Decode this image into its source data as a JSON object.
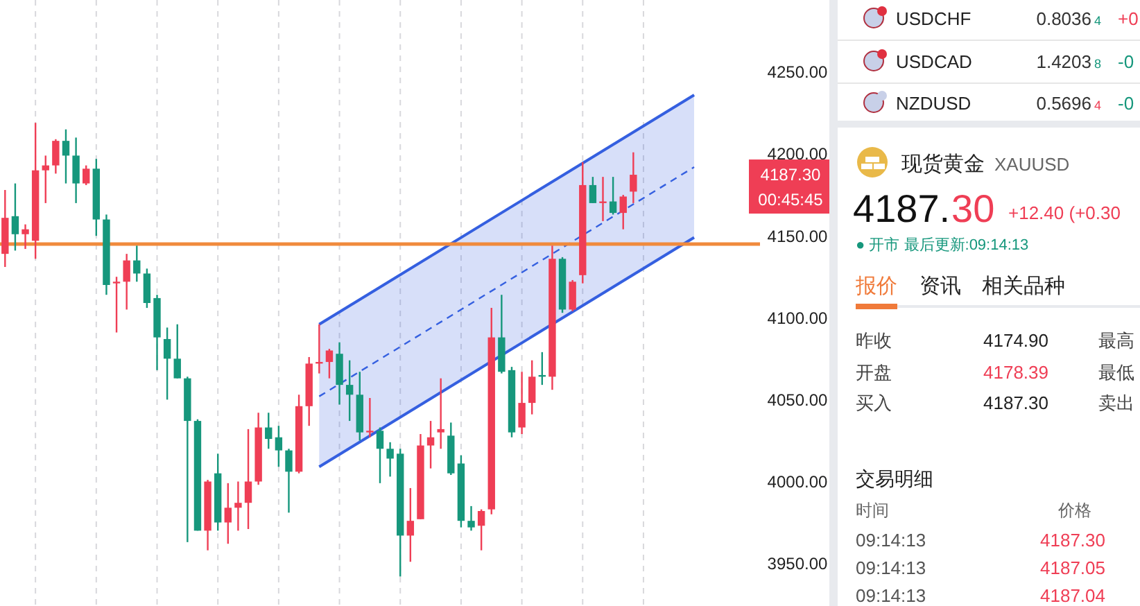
{
  "chart_data": [
    {
      "type": "candlestick",
      "categories": [
        null,
        null,
        null,
        null,
        null,
        null,
        null,
        null,
        null,
        null,
        null,
        null,
        null,
        null,
        null,
        null,
        null,
        null,
        null,
        null,
        null,
        null,
        null,
        null,
        null,
        null,
        null,
        null,
        null,
        null,
        null,
        null,
        null,
        null,
        null,
        null,
        null,
        null,
        null,
        null,
        null,
        null,
        null,
        null,
        null,
        null,
        null,
        null,
        null,
        null,
        null,
        null,
        null,
        null,
        null,
        null,
        null,
        null,
        null,
        null,
        null,
        null,
        null,
        null,
        null,
        null,
        null,
        null,
        null,
        null,
        null,
        null,
        null,
        null,
        null
      ],
      "ohlc": [
        [
          4139,
          4178,
          4131,
          4161
        ],
        [
          4162,
          4182,
          4141,
          4151
        ],
        [
          4151,
          4157,
          4142,
          4154
        ],
        [
          4147,
          4219,
          4136,
          4190
        ],
        [
          4190,
          4199,
          4170,
          4193
        ],
        [
          4193,
          4209,
          4188,
          4208
        ],
        [
          4208,
          4215,
          4182,
          4199
        ],
        [
          4199,
          4210,
          4170,
          4182
        ],
        [
          4182,
          4193,
          4181,
          4191
        ],
        [
          4191,
          4197,
          4150,
          4160
        ],
        [
          4160,
          4163,
          4114,
          4120
        ],
        [
          4121,
          4125,
          4091,
          4122
        ],
        [
          4122,
          4139,
          4105,
          4135
        ],
        [
          4135,
          4144,
          4122,
          4127
        ],
        [
          4127,
          4130,
          4106,
          4109
        ],
        [
          4112,
          4114,
          4068,
          4088
        ],
        [
          4087,
          4094,
          4050,
          4075
        ],
        [
          4075,
          4096,
          4063,
          4063
        ],
        [
          4063,
          4064,
          3963,
          4037
        ],
        [
          4037,
          4038,
          3970,
          3970
        ],
        [
          3970,
          4001,
          3958,
          4000
        ],
        [
          4005,
          4017,
          3970,
          3975
        ],
        [
          3975,
          3999,
          3962,
          3984
        ],
        [
          3984,
          4000,
          3970,
          3987
        ],
        [
          3987,
          4032,
          3971,
          4000
        ],
        [
          4000,
          4042,
          3998,
          4033
        ],
        [
          4033,
          4042,
          4020,
          4026
        ],
        [
          4027,
          4034,
          4009,
          4019
        ],
        [
          4019,
          4020,
          3981,
          4006
        ],
        [
          4006,
          4053,
          4005,
          4046
        ],
        [
          4046,
          4076,
          4034,
          4072
        ],
        [
          4072,
          4096,
          4066,
          4073
        ],
        [
          4073,
          4081,
          4063,
          4080
        ],
        [
          4078,
          4085,
          4047,
          4059
        ],
        [
          4059,
          4074,
          4037,
          4053
        ],
        [
          4053,
          4067,
          4025,
          4030
        ],
        [
          4030,
          4051,
          4027,
          4031
        ],
        [
          4031,
          4033,
          3999,
          4020
        ],
        [
          4020,
          4024,
          4003,
          4014
        ],
        [
          4017,
          4020,
          3942,
          3967
        ],
        [
          3967,
          3996,
          3951,
          3976
        ],
        [
          3977,
          4029,
          3977,
          4022
        ],
        [
          4022,
          4037,
          4008,
          4027
        ],
        [
          4030,
          4063,
          4020,
          4032
        ],
        [
          4028,
          4036,
          4004,
          4005
        ],
        [
          4011,
          4016,
          3972,
          3976
        ],
        [
          3976,
          3985,
          3970,
          3972
        ],
        [
          3973,
          3983,
          3958,
          3982
        ],
        [
          3983,
          4106,
          3980,
          4088
        ],
        [
          4088,
          4114,
          4066,
          4067
        ],
        [
          4068,
          4070,
          4027,
          4030
        ],
        [
          4033,
          4067,
          4029,
          4048
        ],
        [
          4048,
          4074,
          4041,
          4064
        ],
        [
          4065,
          4079,
          4059,
          4064
        ],
        [
          4064,
          4144,
          4056,
          4136
        ],
        [
          4136,
          4137,
          4103,
          4105
        ],
        [
          4105,
          4123,
          4104,
          4122
        ],
        [
          4126,
          4195,
          4121,
          4181
        ],
        [
          4181,
          4186,
          4170,
          4170
        ],
        [
          4170,
          4186,
          4159,
          4171
        ],
        [
          4171,
          4186,
          4163,
          4164
        ],
        [
          4164,
          4175,
          4154,
          4174
        ],
        [
          4177,
          4201,
          4170,
          4187.3
        ],
        null,
        null,
        null,
        null,
        null,
        null,
        null,
        null,
        null,
        null,
        null,
        null
      ],
      "colors": [
        "#ef3e55",
        "#16977c",
        "#ef3e55",
        "#ef3e55",
        "#ef3e55",
        "#ef3e55",
        "#16977c",
        "#16977c",
        "#ef3e55",
        "#16977c",
        "#16977c",
        "#ef3e55",
        "#ef3e55",
        "#16977c",
        "#16977c",
        "#16977c",
        "#16977c",
        "#16977c",
        "#16977c",
        "#16977c",
        "#ef3e55",
        "#16977c",
        "#ef3e55",
        "#ef3e55",
        "#ef3e55",
        "#ef3e55",
        "#16977c",
        "#16977c",
        "#16977c",
        "#ef3e55",
        "#ef3e55",
        "#ef3e55",
        "#ef3e55",
        "#16977c",
        "#16977c",
        "#16977c",
        "#ef3e55",
        "#16977c",
        "#16977c",
        "#16977c",
        "#ef3e55",
        "#ef3e55",
        "#ef3e55",
        "#ef3e55",
        "#16977c",
        "#16977c",
        "#16977c",
        "#ef3e55",
        "#ef3e55",
        "#16977c",
        "#16977c",
        "#ef3e55",
        "#ef3e55",
        "#16977c",
        "#ef3e55",
        "#16977c",
        "#ef3e55",
        "#ef3e55",
        "#16977c",
        "#ef3e55",
        "#16977c",
        "#ef3e55",
        "#ef3e55",
        null,
        null,
        null,
        null,
        null,
        null,
        null,
        null,
        null,
        null,
        null,
        null
      ],
      "ylim": [
        3924,
        4294
      ],
      "yticks": [
        {
          "value": 3950,
          "label": "3950.00"
        },
        {
          "value": 4000,
          "label": "4000.00"
        },
        {
          "value": 4050,
          "label": "4050.00"
        },
        {
          "value": 4100,
          "label": "4100.00"
        },
        {
          "value": 4150,
          "label": "4150.00"
        },
        {
          "value": 4200,
          "label": "4200.00"
        },
        {
          "value": 4250,
          "label": "4250.00"
        }
      ],
      "series": [
        {
          "type": "line",
          "color": "#3560e0",
          "values": [
            null,
            null,
            null,
            null,
            null,
            null,
            null,
            null,
            null,
            null,
            null,
            null,
            null,
            null,
            null,
            null,
            null,
            null,
            null,
            null,
            null,
            null,
            null,
            null,
            null,
            null,
            null,
            null,
            null,
            null,
            null,
            4096,
            null,
            null,
            null,
            null,
            null,
            null,
            null,
            null,
            null,
            null,
            null,
            null,
            null,
            null,
            null,
            null,
            null,
            null,
            null,
            null,
            null,
            null,
            null,
            null,
            null,
            null,
            null,
            null,
            null,
            null,
            null,
            null,
            null,
            null,
            null,
            null,
            4236,
            null,
            null,
            null,
            null,
            null,
            null
          ]
        },
        {
          "type": "line",
          "color": "#3560e0",
          "values": [
            null,
            null,
            null,
            null,
            null,
            null,
            null,
            null,
            null,
            null,
            null,
            null,
            null,
            null,
            null,
            null,
            null,
            null,
            null,
            null,
            null,
            null,
            null,
            null,
            null,
            null,
            null,
            null,
            null,
            null,
            null,
            4009,
            null,
            null,
            null,
            null,
            null,
            null,
            null,
            null,
            null,
            null,
            null,
            null,
            null,
            null,
            null,
            null,
            null,
            null,
            null,
            null,
            null,
            null,
            null,
            null,
            null,
            null,
            null,
            null,
            null,
            null,
            null,
            null,
            null,
            null,
            null,
            null,
            4149,
            null,
            null,
            null,
            null,
            null,
            null
          ]
        },
        {
          "type": "line",
          "values": [
            null,
            null,
            null,
            null,
            null,
            null,
            null,
            null,
            null,
            null,
            null,
            null,
            null,
            null,
            null,
            null,
            null,
            null,
            null,
            null,
            null,
            null,
            null,
            null,
            null,
            null,
            null,
            null,
            null,
            null,
            null,
            4052,
            null,
            null,
            null,
            null,
            null,
            null,
            null,
            null,
            null,
            null,
            null,
            null,
            null,
            null,
            null,
            null,
            null,
            null,
            null,
            null,
            null,
            null,
            null,
            null,
            null,
            null,
            null,
            null,
            null,
            null,
            null,
            null,
            null,
            null,
            null,
            null,
            4192,
            null,
            null,
            null,
            null,
            null,
            null
          ],
          "lower": [
            null,
            null,
            null,
            null,
            null,
            null,
            null,
            null,
            null,
            null,
            null,
            null,
            null,
            null,
            null,
            null,
            null,
            null,
            null,
            null,
            null,
            null,
            null,
            null,
            null,
            null,
            null,
            null,
            null,
            null,
            null,
            4009,
            null,
            null,
            null,
            null,
            null,
            null,
            null,
            null,
            null,
            null,
            null,
            null,
            null,
            null,
            null,
            null,
            null,
            null,
            null,
            null,
            null,
            null,
            null,
            null,
            null,
            null,
            null,
            null,
            null,
            null,
            null,
            null,
            null,
            null,
            null,
            null,
            4149,
            null,
            null,
            null,
            null,
            null,
            null
          ],
          "upper": [
            null,
            null,
            null,
            null,
            null,
            null,
            null,
            null,
            null,
            null,
            null,
            null,
            null,
            null,
            null,
            null,
            null,
            null,
            null,
            null,
            null,
            null,
            null,
            null,
            null,
            null,
            null,
            null,
            null,
            null,
            null,
            4096,
            null,
            null,
            null,
            null,
            null,
            null,
            null,
            null,
            null,
            null,
            null,
            null,
            null,
            null,
            null,
            null,
            null,
            null,
            null,
            null,
            null,
            null,
            null,
            null,
            null,
            null,
            null,
            null,
            null,
            null,
            null,
            null,
            null,
            null,
            null,
            null,
            4236,
            null,
            null,
            null,
            null,
            null,
            null
          ],
          "color": "#3560e0",
          "line_style": "dashed"
        }
      ],
      "tick_labels": "y",
      "grid": "x",
      "ref_lines": [
        {
          "axis": "y",
          "value": 4145,
          "color": "#f08a3c"
        }
      ],
      "annotations": [
        "4187.30",
        "00:45:45"
      ]
    },
    {
      "type": "other",
      "annotations": [
        "USDCHF",
        "0.8036",
        "4",
        "+0",
        "USDCAD",
        "1.4203",
        "8",
        "-0",
        "NZDUSD",
        "0.5696",
        "4",
        "-0",
        "现货黄金",
        "XAUUSD",
        "4187.",
        "30",
        "+12.40 (+0.30",
        "● 开市 最后更新:09:14:13",
        "报价",
        "资讯",
        "相关品种",
        "昨收",
        "4174.90",
        "最高",
        "开盘",
        "4178.39",
        "最低",
        "买入",
        "4187.30",
        "卖出",
        "交易明细",
        "时间",
        "价格",
        "09:14:13",
        "4187.30",
        "09:14:13",
        "4187.05",
        "09:14:13",
        "4187.04"
      ]
    }
  ]
}
